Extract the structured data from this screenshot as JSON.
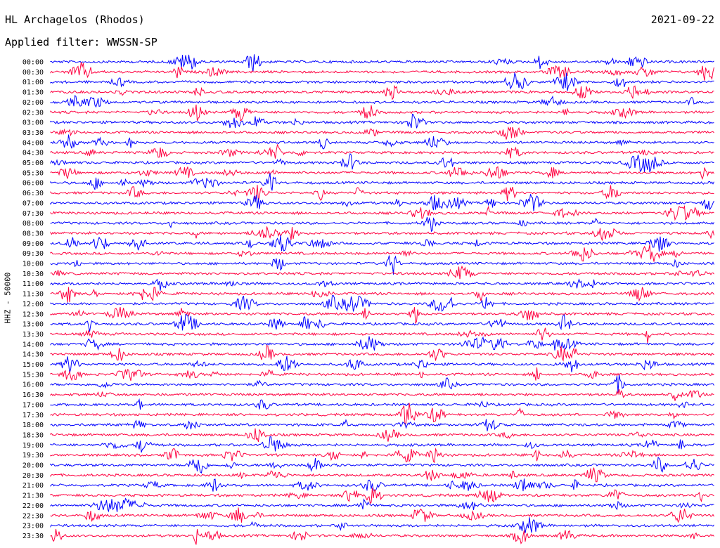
{
  "header": {
    "station": "HL Archagelos (Rhodos)",
    "date": "2021-09-22",
    "filter": "Applied filter: WWSSN-SP"
  },
  "colors": {
    "even_trace": "#0000ff",
    "odd_trace": "#ff0040"
  },
  "chart_data": {
    "type": "line",
    "ylabel": "HHZ - 50000",
    "trace_labels": [
      "00:00",
      "00:30",
      "01:00",
      "01:30",
      "02:00",
      "02:30",
      "03:00",
      "03:30",
      "04:00",
      "04:30",
      "05:00",
      "05:30",
      "06:00",
      "06:30",
      "07:00",
      "07:30",
      "08:00",
      "08:30",
      "09:00",
      "09:30",
      "10:00",
      "10:30",
      "11:00",
      "11:30",
      "12:00",
      "12:30",
      "13:00",
      "13:30",
      "14:00",
      "14:30",
      "15:00",
      "15:30",
      "16:00",
      "16:30",
      "17:00",
      "17:30",
      "18:00",
      "18:30",
      "19:00",
      "19:30",
      "20:00",
      "20:30",
      "21:00",
      "21:30",
      "22:00",
      "22:30",
      "23:00",
      "23:30"
    ],
    "trace_colors": "alternating blue/red",
    "grid": false
  }
}
